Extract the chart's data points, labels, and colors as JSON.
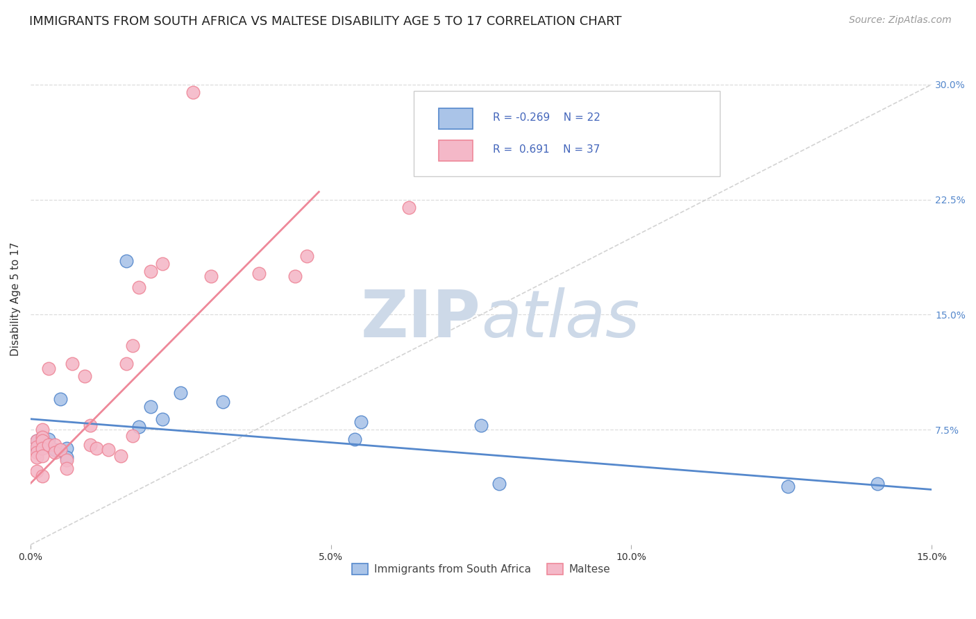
{
  "title": "IMMIGRANTS FROM SOUTH AFRICA VS MALTESE DISABILITY AGE 5 TO 17 CORRELATION CHART",
  "source": "Source: ZipAtlas.com",
  "ylabel": "Disability Age 5 to 17",
  "xlim": [
    0.0,
    0.15
  ],
  "ylim": [
    0.0,
    0.32
  ],
  "xticks": [
    0.0,
    0.05,
    0.1,
    0.15
  ],
  "xtick_labels": [
    "0.0%",
    "5.0%",
    "10.0%",
    "15.0%"
  ],
  "yticks_right": [
    0.075,
    0.15,
    0.225,
    0.3
  ],
  "ytick_labels_right": [
    "7.5%",
    "15.0%",
    "22.5%",
    "30.0%"
  ],
  "gridline_color": "#dddddd",
  "background_color": "#ffffff",
  "diagonal_line_color": "#c8c8c8",
  "blue_color": "#5588cc",
  "pink_color": "#ee8899",
  "blue_fill": "#aac4e8",
  "pink_fill": "#f4b8c8",
  "blue_r": -0.269,
  "blue_n": 22,
  "pink_r": 0.691,
  "pink_n": 37,
  "legend_r_color": "#4466bb",
  "title_fontsize": 13,
  "axis_label_fontsize": 11,
  "tick_fontsize": 10,
  "source_fontsize": 10,
  "blue_scatter_x": [
    0.001,
    0.001,
    0.002,
    0.002,
    0.003,
    0.003,
    0.004,
    0.005,
    0.006,
    0.006,
    0.016,
    0.018,
    0.02,
    0.022,
    0.025,
    0.032,
    0.054,
    0.055,
    0.075,
    0.078,
    0.126,
    0.141
  ],
  "blue_scatter_y": [
    0.068,
    0.063,
    0.07,
    0.065,
    0.069,
    0.065,
    0.062,
    0.095,
    0.063,
    0.057,
    0.185,
    0.077,
    0.09,
    0.082,
    0.099,
    0.093,
    0.069,
    0.08,
    0.078,
    0.04,
    0.038,
    0.04
  ],
  "pink_scatter_x": [
    0.001,
    0.001,
    0.001,
    0.001,
    0.001,
    0.002,
    0.002,
    0.002,
    0.002,
    0.002,
    0.002,
    0.003,
    0.003,
    0.004,
    0.004,
    0.005,
    0.006,
    0.006,
    0.007,
    0.009,
    0.01,
    0.01,
    0.011,
    0.013,
    0.015,
    0.016,
    0.017,
    0.017,
    0.018,
    0.02,
    0.022,
    0.027,
    0.03,
    0.038,
    0.044,
    0.046,
    0.063
  ],
  "pink_scatter_y": [
    0.068,
    0.064,
    0.06,
    0.057,
    0.048,
    0.075,
    0.07,
    0.068,
    0.063,
    0.058,
    0.045,
    0.115,
    0.065,
    0.065,
    0.06,
    0.062,
    0.055,
    0.05,
    0.118,
    0.11,
    0.078,
    0.065,
    0.063,
    0.062,
    0.058,
    0.118,
    0.13,
    0.071,
    0.168,
    0.178,
    0.183,
    0.295,
    0.175,
    0.177,
    0.175,
    0.188,
    0.22
  ],
  "blue_line_x": [
    0.0,
    0.15
  ],
  "blue_line_y": [
    0.082,
    0.036
  ],
  "pink_line_x": [
    0.0,
    0.048
  ],
  "pink_line_y": [
    0.04,
    0.23
  ],
  "watermark_zip": "ZIP",
  "watermark_atlas": "atlas",
  "watermark_color": "#cdd9e8",
  "watermark_fontsize": 68
}
